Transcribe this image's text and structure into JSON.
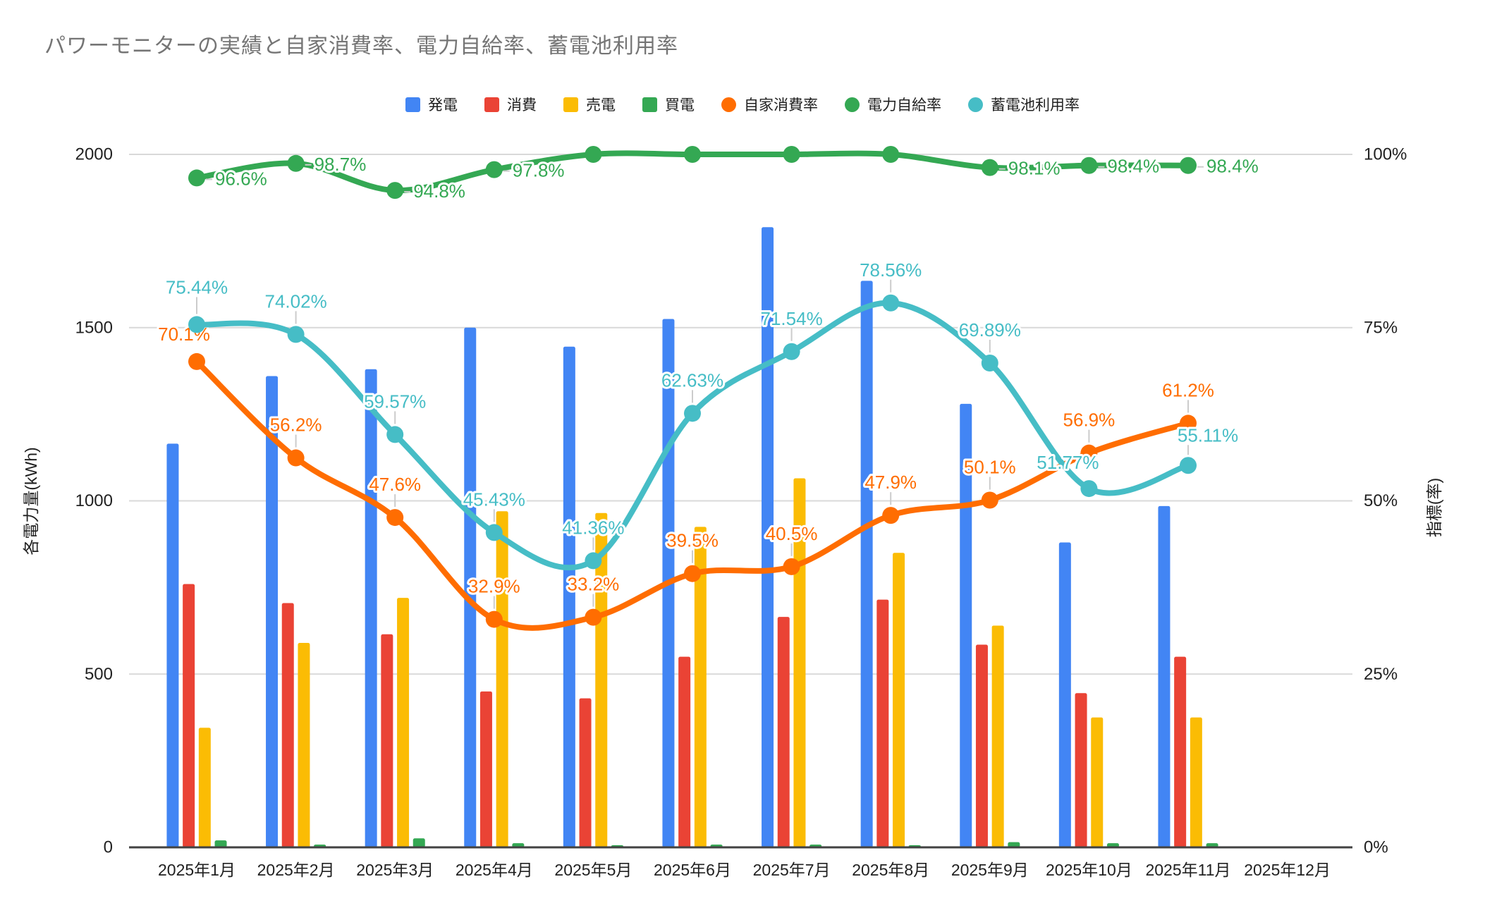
{
  "title": "パワーモニターの実績と自家消費率、電力自給率、蓄電池利用率",
  "legend": {
    "items": [
      {
        "label": "発電",
        "type": "bar",
        "color": "#4285F4"
      },
      {
        "label": "消費",
        "type": "bar",
        "color": "#EA4335"
      },
      {
        "label": "売電",
        "type": "bar",
        "color": "#FBBC04"
      },
      {
        "label": "買電",
        "type": "bar",
        "color": "#34A853"
      },
      {
        "label": "自家消費率",
        "type": "line",
        "color": "#FF6D01"
      },
      {
        "label": "電力自給率",
        "type": "line",
        "color": "#34A853"
      },
      {
        "label": "蓄電池利用率",
        "type": "line",
        "color": "#46BDC6"
      }
    ]
  },
  "axes": {
    "left": {
      "title": "各電力量(kWh)",
      "ticks": [
        "2000",
        "1500",
        "1000",
        "500",
        "0"
      ]
    },
    "right": {
      "title": "指標(率)",
      "ticks": [
        "100%",
        "75%",
        "50%",
        "25%",
        "0%"
      ]
    }
  },
  "chart_data": {
    "type": "combo-bar-line",
    "categories": [
      "2025年1月",
      "2025年2月",
      "2025年3月",
      "2025年4月",
      "2025年5月",
      "2025年6月",
      "2025年7月",
      "2025年8月",
      "2025年9月",
      "2025年10月",
      "2025年11月",
      "2025年12月"
    ],
    "bar_series": [
      {
        "name": "発電",
        "color": "#4285F4",
        "axis": "left",
        "values": [
          1165,
          1360,
          1380,
          1500,
          1445,
          1525,
          1790,
          1635,
          1280,
          880,
          985,
          null
        ]
      },
      {
        "name": "消費",
        "color": "#EA4335",
        "axis": "left",
        "values": [
          760,
          705,
          615,
          450,
          430,
          550,
          665,
          715,
          585,
          445,
          550,
          null
        ]
      },
      {
        "name": "売電",
        "color": "#FBBC04",
        "axis": "left",
        "values": [
          345,
          590,
          720,
          970,
          965,
          925,
          1065,
          850,
          640,
          375,
          375,
          null
        ]
      },
      {
        "name": "買電",
        "color": "#34A853",
        "axis": "left",
        "values": [
          20,
          8,
          26,
          12,
          6,
          8,
          8,
          6,
          15,
          12,
          12,
          null
        ]
      }
    ],
    "line_series": [
      {
        "name": "自家消費率",
        "color": "#FF6D01",
        "axis": "right",
        "values": [
          70.1,
          56.2,
          47.6,
          32.9,
          33.2,
          39.5,
          40.5,
          47.9,
          50.1,
          56.9,
          61.2,
          null
        ],
        "labels": [
          "70.1%",
          "56.2%",
          "47.6%",
          "32.9%",
          "33.2%",
          "39.5%",
          "40.5%",
          "47.9%",
          "50.1%",
          "56.9%",
          "61.2%",
          ""
        ]
      },
      {
        "name": "電力自給率",
        "color": "#34A853",
        "axis": "right",
        "values": [
          96.6,
          98.7,
          94.8,
          97.8,
          100,
          100,
          100,
          100,
          98.1,
          98.4,
          98.4,
          null
        ],
        "labels": [
          "96.6%",
          "98.7%",
          "94.8%",
          "97.8%",
          "",
          "",
          "",
          "",
          "98.1%",
          "98.4%",
          "98.4%",
          ""
        ]
      },
      {
        "name": "蓄電池利用率",
        "color": "#46BDC6",
        "axis": "right",
        "values": [
          75.44,
          74.02,
          59.57,
          45.43,
          41.36,
          62.63,
          71.54,
          78.56,
          69.89,
          51.77,
          55.11,
          null
        ],
        "labels": [
          "75.44%",
          "74.02%",
          "59.57%",
          "45.43%",
          "41.36%",
          "62.63%",
          "71.54%",
          "78.56%",
          "69.89%",
          "51.77%",
          "55.11%",
          ""
        ]
      }
    ],
    "ylim_left": [
      0,
      2000
    ],
    "ylim_right": [
      0,
      100
    ],
    "grid": true,
    "legend_position": "top"
  },
  "colors": {
    "grid": "#d9d9d9",
    "axis_line": "#424242",
    "title_text": "#757575",
    "tick_text": "#212121",
    "leader_line": "#cccccc",
    "background": "#ffffff"
  }
}
